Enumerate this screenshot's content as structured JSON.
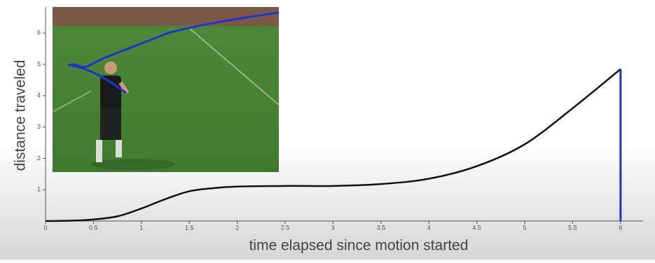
{
  "chart_data": {
    "type": "line",
    "x_label": "time elapsed since motion started",
    "y_label": "distance traveled",
    "xlim": [
      0,
      6.2
    ],
    "ylim": [
      0,
      6.8
    ],
    "xticks": [
      0,
      0.5,
      1,
      1.5,
      2,
      2.5,
      3,
      3.5,
      4,
      4.5,
      5,
      5.5,
      6
    ],
    "yticks": [
      1,
      2,
      3,
      4,
      5,
      6
    ],
    "series": [
      {
        "color": "#111111",
        "x": [
          0,
          0.25,
          0.5,
          0.75,
          1,
          1.25,
          1.5,
          1.75,
          2,
          2.5,
          3,
          3.5,
          4,
          4.5,
          5,
          5.5,
          6
        ],
        "values": [
          0,
          0.01,
          0.05,
          0.15,
          0.4,
          0.7,
          0.95,
          1.05,
          1.1,
          1.12,
          1.12,
          1.18,
          1.35,
          1.75,
          2.45,
          3.6,
          4.85
        ]
      },
      {
        "color": "#2233bb",
        "x": [
          6,
          6
        ],
        "values": [
          0,
          4.85
        ]
      }
    ]
  }
}
